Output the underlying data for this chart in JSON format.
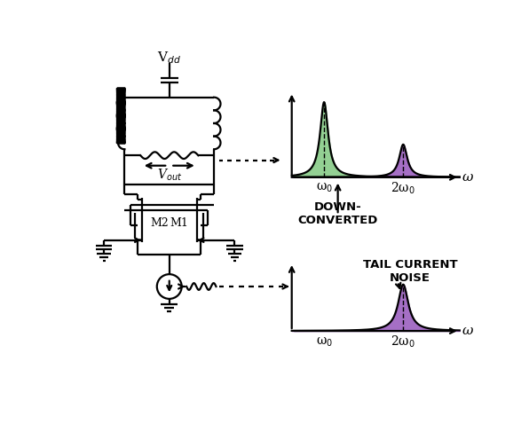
{
  "bg_color": "#ffffff",
  "line_color": "#000000",
  "green_fill": "#80c880",
  "purple_fill": "#9b5fbf",
  "vdd_label": "V$_{dd}$",
  "vout_label": "V$_{out}$",
  "m1_label": "M1",
  "m2_label": "M2",
  "down_converted_label": "DOWN-\nCONVERTED",
  "tail_current_label": "TAIL CURRENT\nNOISE",
  "omega_label": "ω",
  "omega0_label": "ω$_0$",
  "two_omega0_label": "2ω$_0$",
  "figw": 5.96,
  "figh": 4.78,
  "dpi": 100
}
